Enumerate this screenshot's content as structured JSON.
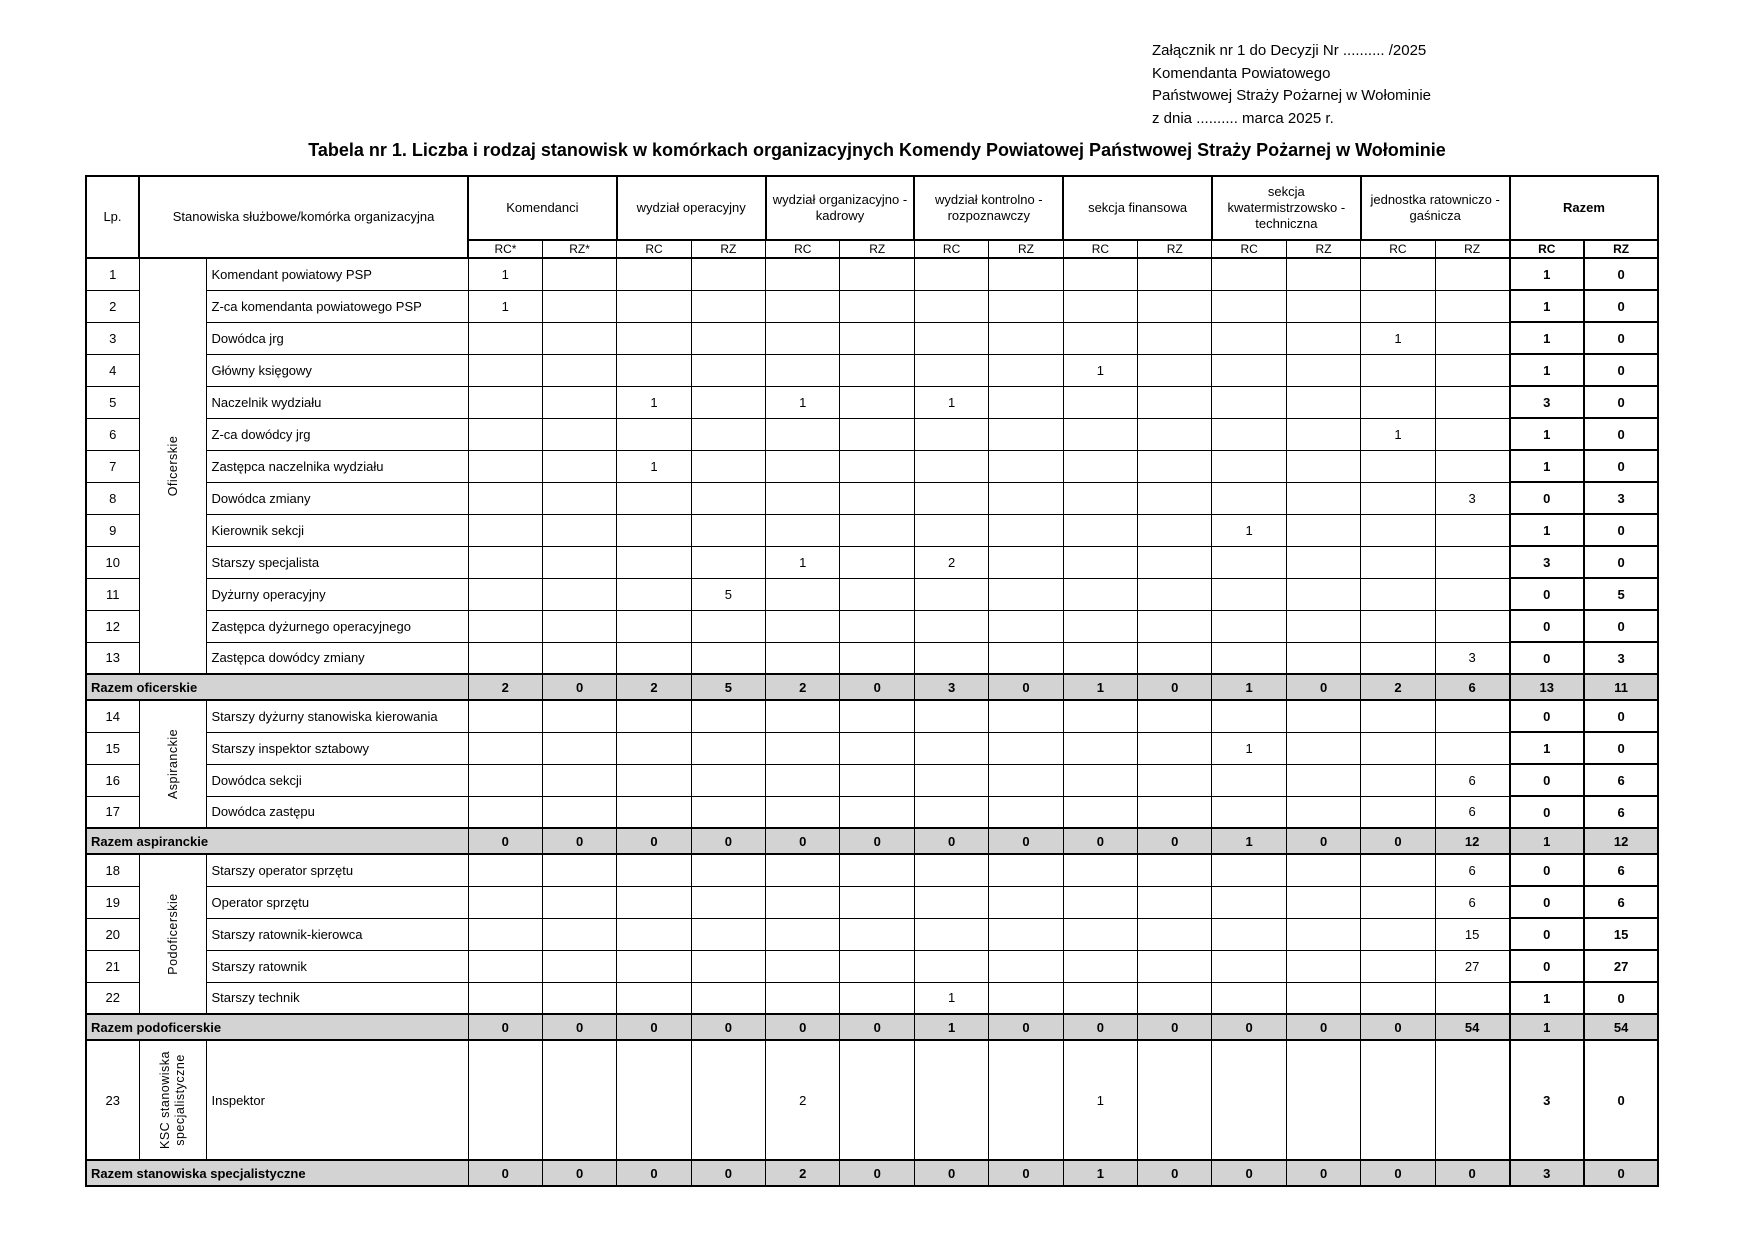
{
  "attachment": {
    "lines": [
      "Załącznik nr 1 do Decyzji Nr .......... /2025",
      "Komendanta Powiatowego",
      "Państwowej Straży Pożarnej w Wołominie",
      "z dnia .......... marca 2025 r."
    ]
  },
  "title": "Tabela nr 1. Liczba i rodzaj stanowisk w komórkach organizacyjnych Komendy Powiatowej Państwowej Straży Pożarnej w Wołominie",
  "table": {
    "header": {
      "lp": "Lp.",
      "position": "Stanowiska służbowe/komórka organizacyjna",
      "departments": [
        {
          "label": "Komendanci",
          "rc": "RC*",
          "rz": "RZ*"
        },
        {
          "label": "wydział operacyjny",
          "rc": "RC",
          "rz": "RZ"
        },
        {
          "label": "wydział organizacyjno - kadrowy",
          "rc": "RC",
          "rz": "RZ"
        },
        {
          "label": "wydział kontrolno - rozpoznawczy",
          "rc": "RC",
          "rz": "RZ"
        },
        {
          "label": "sekcja finansowa",
          "rc": "RC",
          "rz": "RZ"
        },
        {
          "label": "sekcja kwatermistrzowsko - techniczna",
          "rc": "RC",
          "rz": "RZ"
        },
        {
          "label": "jednostka ratowniczo - gaśnicza",
          "rc": "RC",
          "rz": "RZ"
        },
        {
          "label": "Razem",
          "rc": "RC",
          "rz": "RZ"
        }
      ]
    },
    "groups": [
      {
        "name": "Oficerskie",
        "rows": [
          {
            "lp": "1",
            "position": "Komendant powiatowy PSP",
            "values": [
              "1",
              "",
              "",
              "",
              "",
              "",
              "",
              "",
              "",
              "",
              "",
              "",
              "",
              "",
              "1",
              "0"
            ]
          },
          {
            "lp": "2",
            "position": "Z-ca komendanta powiatowego PSP",
            "values": [
              "1",
              "",
              "",
              "",
              "",
              "",
              "",
              "",
              "",
              "",
              "",
              "",
              "",
              "",
              "1",
              "0"
            ]
          },
          {
            "lp": "3",
            "position": "Dowódca jrg",
            "values": [
              "",
              "",
              "",
              "",
              "",
              "",
              "",
              "",
              "",
              "",
              "",
              "",
              "1",
              "",
              "1",
              "0"
            ]
          },
          {
            "lp": "4",
            "position": "Główny księgowy",
            "values": [
              "",
              "",
              "",
              "",
              "",
              "",
              "",
              "",
              "1",
              "",
              "",
              "",
              "",
              "",
              "1",
              "0"
            ]
          },
          {
            "lp": "5",
            "position": "Naczelnik wydziału",
            "values": [
              "",
              "",
              "1",
              "",
              "1",
              "",
              "1",
              "",
              "",
              "",
              "",
              "",
              "",
              "",
              "3",
              "0"
            ]
          },
          {
            "lp": "6",
            "position": "Z-ca dowódcy jrg",
            "values": [
              "",
              "",
              "",
              "",
              "",
              "",
              "",
              "",
              "",
              "",
              "",
              "",
              "1",
              "",
              "1",
              "0"
            ]
          },
          {
            "lp": "7",
            "position": "Zastępca naczelnika wydziału",
            "values": [
              "",
              "",
              "1",
              "",
              "",
              "",
              "",
              "",
              "",
              "",
              "",
              "",
              "",
              "",
              "1",
              "0"
            ]
          },
          {
            "lp": "8",
            "position": "Dowódca zmiany",
            "values": [
              "",
              "",
              "",
              "",
              "",
              "",
              "",
              "",
              "",
              "",
              "",
              "",
              "",
              "3",
              "0",
              "3"
            ]
          },
          {
            "lp": "9",
            "position": "Kierownik sekcji",
            "values": [
              "",
              "",
              "",
              "",
              "",
              "",
              "",
              "",
              "",
              "",
              "1",
              "",
              "",
              "",
              "1",
              "0"
            ]
          },
          {
            "lp": "10",
            "position": "Starszy specjalista",
            "values": [
              "",
              "",
              "",
              "",
              "1",
              "",
              "2",
              "",
              "",
              "",
              "",
              "",
              "",
              "",
              "3",
              "0"
            ]
          },
          {
            "lp": "11",
            "position": "Dyżurny operacyjny",
            "values": [
              "",
              "",
              "",
              "5",
              "",
              "",
              "",
              "",
              "",
              "",
              "",
              "",
              "",
              "",
              "0",
              "5"
            ]
          },
          {
            "lp": "12",
            "position": "Zastępca dyżurnego operacyjnego",
            "values": [
              "",
              "",
              "",
              "",
              "",
              "",
              "",
              "",
              "",
              "",
              "",
              "",
              "",
              "",
              "0",
              "0"
            ]
          },
          {
            "lp": "13",
            "position": "Zastępca dowódcy zmiany",
            "values": [
              "",
              "",
              "",
              "",
              "",
              "",
              "",
              "",
              "",
              "",
              "",
              "",
              "",
              "3",
              "0",
              "3"
            ]
          }
        ],
        "summary": {
          "label": "Razem oficerskie",
          "values": [
            "2",
            "0",
            "2",
            "5",
            "2",
            "0",
            "3",
            "0",
            "1",
            "0",
            "1",
            "0",
            "2",
            "6",
            "13",
            "11"
          ]
        }
      },
      {
        "name": "Aspiranckie",
        "rows": [
          {
            "lp": "14",
            "position": "Starszy dyżurny stanowiska kierowania",
            "values": [
              "",
              "",
              "",
              "",
              "",
              "",
              "",
              "",
              "",
              "",
              "",
              "",
              "",
              "",
              "0",
              "0"
            ]
          },
          {
            "lp": "15",
            "position": "Starszy inspektor sztabowy",
            "values": [
              "",
              "",
              "",
              "",
              "",
              "",
              "",
              "",
              "",
              "",
              "1",
              "",
              "",
              "",
              "1",
              "0"
            ]
          },
          {
            "lp": "16",
            "position": "Dowódca sekcji",
            "values": [
              "",
              "",
              "",
              "",
              "",
              "",
              "",
              "",
              "",
              "",
              "",
              "",
              "",
              "6",
              "0",
              "6"
            ]
          },
          {
            "lp": "17",
            "position": "Dowódca zastępu",
            "values": [
              "",
              "",
              "",
              "",
              "",
              "",
              "",
              "",
              "",
              "",
              "",
              "",
              "",
              "6",
              "0",
              "6"
            ]
          }
        ],
        "summary": {
          "label": "Razem aspiranckie",
          "values": [
            "0",
            "0",
            "0",
            "0",
            "0",
            "0",
            "0",
            "0",
            "0",
            "0",
            "1",
            "0",
            "0",
            "12",
            "1",
            "12"
          ]
        }
      },
      {
        "name": "Podoficerskie",
        "rows": [
          {
            "lp": "18",
            "position": "Starszy operator sprzętu",
            "values": [
              "",
              "",
              "",
              "",
              "",
              "",
              "",
              "",
              "",
              "",
              "",
              "",
              "",
              "6",
              "0",
              "6"
            ]
          },
          {
            "lp": "19",
            "position": "Operator sprzętu",
            "values": [
              "",
              "",
              "",
              "",
              "",
              "",
              "",
              "",
              "",
              "",
              "",
              "",
              "",
              "6",
              "0",
              "6"
            ]
          },
          {
            "lp": "20",
            "position": "Starszy ratownik-kierowca",
            "values": [
              "",
              "",
              "",
              "",
              "",
              "",
              "",
              "",
              "",
              "",
              "",
              "",
              "",
              "15",
              "0",
              "15"
            ]
          },
          {
            "lp": "21",
            "position": "Starszy ratownik",
            "values": [
              "",
              "",
              "",
              "",
              "",
              "",
              "",
              "",
              "",
              "",
              "",
              "",
              "",
              "27",
              "0",
              "27"
            ]
          },
          {
            "lp": "22",
            "position": "Starszy technik",
            "values": [
              "",
              "",
              "",
              "",
              "",
              "",
              "1",
              "",
              "",
              "",
              "",
              "",
              "",
              "",
              "1",
              "0"
            ]
          }
        ],
        "summary": {
          "label": "Razem podoficerskie",
          "values": [
            "0",
            "0",
            "0",
            "0",
            "0",
            "0",
            "1",
            "0",
            "0",
            "0",
            "0",
            "0",
            "0",
            "54",
            "1",
            "54"
          ]
        }
      },
      {
        "name": "KSC stanowiska specjalistyczne",
        "tall": true,
        "rows": [
          {
            "lp": "23",
            "position": "Inspektor",
            "values": [
              "",
              "",
              "",
              "",
              "2",
              "",
              "",
              "",
              "1",
              "",
              "",
              "",
              "",
              "",
              "3",
              "0"
            ]
          }
        ],
        "summary": {
          "label": "Razem stanowiska specjalistyczne",
          "values": [
            "0",
            "0",
            "0",
            "0",
            "2",
            "0",
            "0",
            "0",
            "1",
            "0",
            "0",
            "0",
            "0",
            "0",
            "3",
            "0"
          ]
        }
      }
    ]
  }
}
